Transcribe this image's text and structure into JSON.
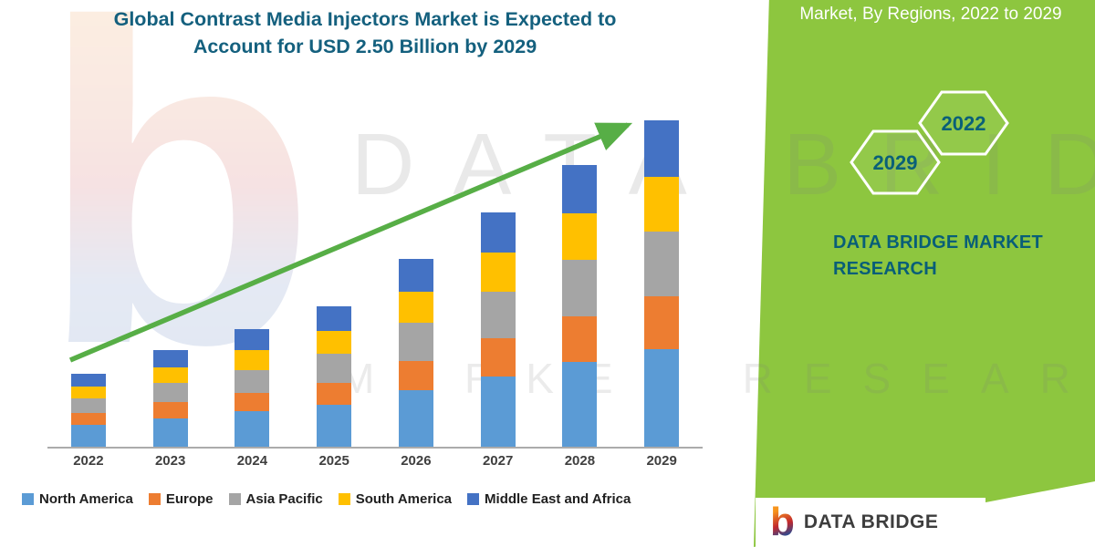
{
  "title": {
    "line1": "Global Contrast Media Injectors Market is Expected to",
    "line2": "Account for USD 2.50 Billion by 2029"
  },
  "watermark": {
    "logo_letter": "b",
    "line1": "DATA BRIDGE",
    "line2": "MARKET RESEARCH"
  },
  "right_panel": {
    "heading": "Market, By Regions, 2022 to 2029",
    "hexagons": [
      "2029",
      "2022"
    ],
    "brand_line1": "DATA BRIDGE MARKET",
    "brand_line2": "RESEARCH"
  },
  "footer": {
    "logo_letter": "b",
    "brand": "DATA BRIDGE"
  },
  "colors": {
    "panel_green": "#8DC63F",
    "arrow_green": "#57AE46",
    "title_teal": "#14607E",
    "brand_teal": "#085E78",
    "axis_gray": "#ababab"
  },
  "chart_data": {
    "type": "bar",
    "stacked": true,
    "title": "Global Contrast Media Injectors Market is Expected to Account for USD 2.50 Billion by 2029",
    "categories": [
      "2022",
      "2023",
      "2024",
      "2025",
      "2026",
      "2027",
      "2028",
      "2029"
    ],
    "series": [
      {
        "name": "North America",
        "color": "#5B9BD5",
        "values": [
          0.17,
          0.22,
          0.27,
          0.32,
          0.43,
          0.54,
          0.65,
          0.75
        ]
      },
      {
        "name": "Europe",
        "color": "#ED7D31",
        "values": [
          0.09,
          0.12,
          0.14,
          0.17,
          0.23,
          0.29,
          0.35,
          0.4
        ]
      },
      {
        "name": "Asia Pacific",
        "color": "#A5A5A5",
        "values": [
          0.11,
          0.15,
          0.18,
          0.22,
          0.29,
          0.36,
          0.43,
          0.5
        ]
      },
      {
        "name": "South America",
        "color": "#FFC000",
        "values": [
          0.09,
          0.12,
          0.15,
          0.18,
          0.24,
          0.3,
          0.36,
          0.42
        ]
      },
      {
        "name": "Middle East and Africa",
        "color": "#4472C4",
        "values": [
          0.1,
          0.13,
          0.16,
          0.19,
          0.25,
          0.31,
          0.37,
          0.43
        ]
      }
    ],
    "totals": [
      0.56,
      0.74,
      0.9,
      1.08,
      1.44,
      1.8,
      2.16,
      2.5
    ],
    "xlabel": "",
    "ylabel": "",
    "ylim": [
      0,
      2.6
    ],
    "grid": false,
    "y_axis_visible": false,
    "legend_position": "bottom",
    "annotations": [
      "upward green trend arrow across bars"
    ]
  }
}
